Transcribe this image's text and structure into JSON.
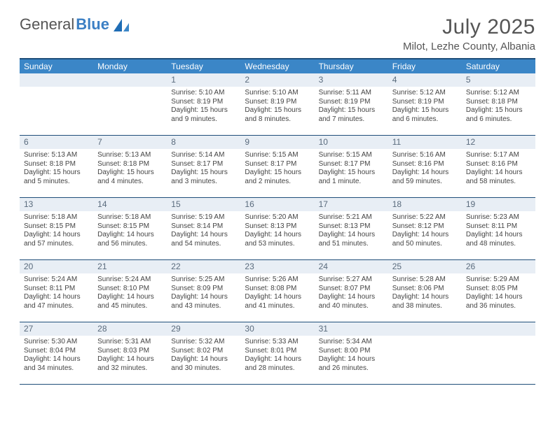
{
  "logo": {
    "part1": "General",
    "part2": "Blue"
  },
  "title": "July 2025",
  "location": "Milot, Lezhe County, Albania",
  "colors": {
    "header_band": "#3b86c7",
    "top_border": "#1f4e79",
    "daynum_bg": "#e8eef5",
    "text": "#444444",
    "title_text": "#555555",
    "logo_blue": "#3b7fc4"
  },
  "days_of_week": [
    "Sunday",
    "Monday",
    "Tuesday",
    "Wednesday",
    "Thursday",
    "Friday",
    "Saturday"
  ],
  "weeks": [
    [
      {
        "n": "",
        "sr": "",
        "ss": "",
        "dl": ""
      },
      {
        "n": "",
        "sr": "",
        "ss": "",
        "dl": ""
      },
      {
        "n": "1",
        "sr": "Sunrise: 5:10 AM",
        "ss": "Sunset: 8:19 PM",
        "dl": "Daylight: 15 hours and 9 minutes."
      },
      {
        "n": "2",
        "sr": "Sunrise: 5:10 AM",
        "ss": "Sunset: 8:19 PM",
        "dl": "Daylight: 15 hours and 8 minutes."
      },
      {
        "n": "3",
        "sr": "Sunrise: 5:11 AM",
        "ss": "Sunset: 8:19 PM",
        "dl": "Daylight: 15 hours and 7 minutes."
      },
      {
        "n": "4",
        "sr": "Sunrise: 5:12 AM",
        "ss": "Sunset: 8:19 PM",
        "dl": "Daylight: 15 hours and 6 minutes."
      },
      {
        "n": "5",
        "sr": "Sunrise: 5:12 AM",
        "ss": "Sunset: 8:18 PM",
        "dl": "Daylight: 15 hours and 6 minutes."
      }
    ],
    [
      {
        "n": "6",
        "sr": "Sunrise: 5:13 AM",
        "ss": "Sunset: 8:18 PM",
        "dl": "Daylight: 15 hours and 5 minutes."
      },
      {
        "n": "7",
        "sr": "Sunrise: 5:13 AM",
        "ss": "Sunset: 8:18 PM",
        "dl": "Daylight: 15 hours and 4 minutes."
      },
      {
        "n": "8",
        "sr": "Sunrise: 5:14 AM",
        "ss": "Sunset: 8:17 PM",
        "dl": "Daylight: 15 hours and 3 minutes."
      },
      {
        "n": "9",
        "sr": "Sunrise: 5:15 AM",
        "ss": "Sunset: 8:17 PM",
        "dl": "Daylight: 15 hours and 2 minutes."
      },
      {
        "n": "10",
        "sr": "Sunrise: 5:15 AM",
        "ss": "Sunset: 8:17 PM",
        "dl": "Daylight: 15 hours and 1 minute."
      },
      {
        "n": "11",
        "sr": "Sunrise: 5:16 AM",
        "ss": "Sunset: 8:16 PM",
        "dl": "Daylight: 14 hours and 59 minutes."
      },
      {
        "n": "12",
        "sr": "Sunrise: 5:17 AM",
        "ss": "Sunset: 8:16 PM",
        "dl": "Daylight: 14 hours and 58 minutes."
      }
    ],
    [
      {
        "n": "13",
        "sr": "Sunrise: 5:18 AM",
        "ss": "Sunset: 8:15 PM",
        "dl": "Daylight: 14 hours and 57 minutes."
      },
      {
        "n": "14",
        "sr": "Sunrise: 5:18 AM",
        "ss": "Sunset: 8:15 PM",
        "dl": "Daylight: 14 hours and 56 minutes."
      },
      {
        "n": "15",
        "sr": "Sunrise: 5:19 AM",
        "ss": "Sunset: 8:14 PM",
        "dl": "Daylight: 14 hours and 54 minutes."
      },
      {
        "n": "16",
        "sr": "Sunrise: 5:20 AM",
        "ss": "Sunset: 8:13 PM",
        "dl": "Daylight: 14 hours and 53 minutes."
      },
      {
        "n": "17",
        "sr": "Sunrise: 5:21 AM",
        "ss": "Sunset: 8:13 PM",
        "dl": "Daylight: 14 hours and 51 minutes."
      },
      {
        "n": "18",
        "sr": "Sunrise: 5:22 AM",
        "ss": "Sunset: 8:12 PM",
        "dl": "Daylight: 14 hours and 50 minutes."
      },
      {
        "n": "19",
        "sr": "Sunrise: 5:23 AM",
        "ss": "Sunset: 8:11 PM",
        "dl": "Daylight: 14 hours and 48 minutes."
      }
    ],
    [
      {
        "n": "20",
        "sr": "Sunrise: 5:24 AM",
        "ss": "Sunset: 8:11 PM",
        "dl": "Daylight: 14 hours and 47 minutes."
      },
      {
        "n": "21",
        "sr": "Sunrise: 5:24 AM",
        "ss": "Sunset: 8:10 PM",
        "dl": "Daylight: 14 hours and 45 minutes."
      },
      {
        "n": "22",
        "sr": "Sunrise: 5:25 AM",
        "ss": "Sunset: 8:09 PM",
        "dl": "Daylight: 14 hours and 43 minutes."
      },
      {
        "n": "23",
        "sr": "Sunrise: 5:26 AM",
        "ss": "Sunset: 8:08 PM",
        "dl": "Daylight: 14 hours and 41 minutes."
      },
      {
        "n": "24",
        "sr": "Sunrise: 5:27 AM",
        "ss": "Sunset: 8:07 PM",
        "dl": "Daylight: 14 hours and 40 minutes."
      },
      {
        "n": "25",
        "sr": "Sunrise: 5:28 AM",
        "ss": "Sunset: 8:06 PM",
        "dl": "Daylight: 14 hours and 38 minutes."
      },
      {
        "n": "26",
        "sr": "Sunrise: 5:29 AM",
        "ss": "Sunset: 8:05 PM",
        "dl": "Daylight: 14 hours and 36 minutes."
      }
    ],
    [
      {
        "n": "27",
        "sr": "Sunrise: 5:30 AM",
        "ss": "Sunset: 8:04 PM",
        "dl": "Daylight: 14 hours and 34 minutes."
      },
      {
        "n": "28",
        "sr": "Sunrise: 5:31 AM",
        "ss": "Sunset: 8:03 PM",
        "dl": "Daylight: 14 hours and 32 minutes."
      },
      {
        "n": "29",
        "sr": "Sunrise: 5:32 AM",
        "ss": "Sunset: 8:02 PM",
        "dl": "Daylight: 14 hours and 30 minutes."
      },
      {
        "n": "30",
        "sr": "Sunrise: 5:33 AM",
        "ss": "Sunset: 8:01 PM",
        "dl": "Daylight: 14 hours and 28 minutes."
      },
      {
        "n": "31",
        "sr": "Sunrise: 5:34 AM",
        "ss": "Sunset: 8:00 PM",
        "dl": "Daylight: 14 hours and 26 minutes."
      },
      {
        "n": "",
        "sr": "",
        "ss": "",
        "dl": ""
      },
      {
        "n": "",
        "sr": "",
        "ss": "",
        "dl": ""
      }
    ]
  ]
}
